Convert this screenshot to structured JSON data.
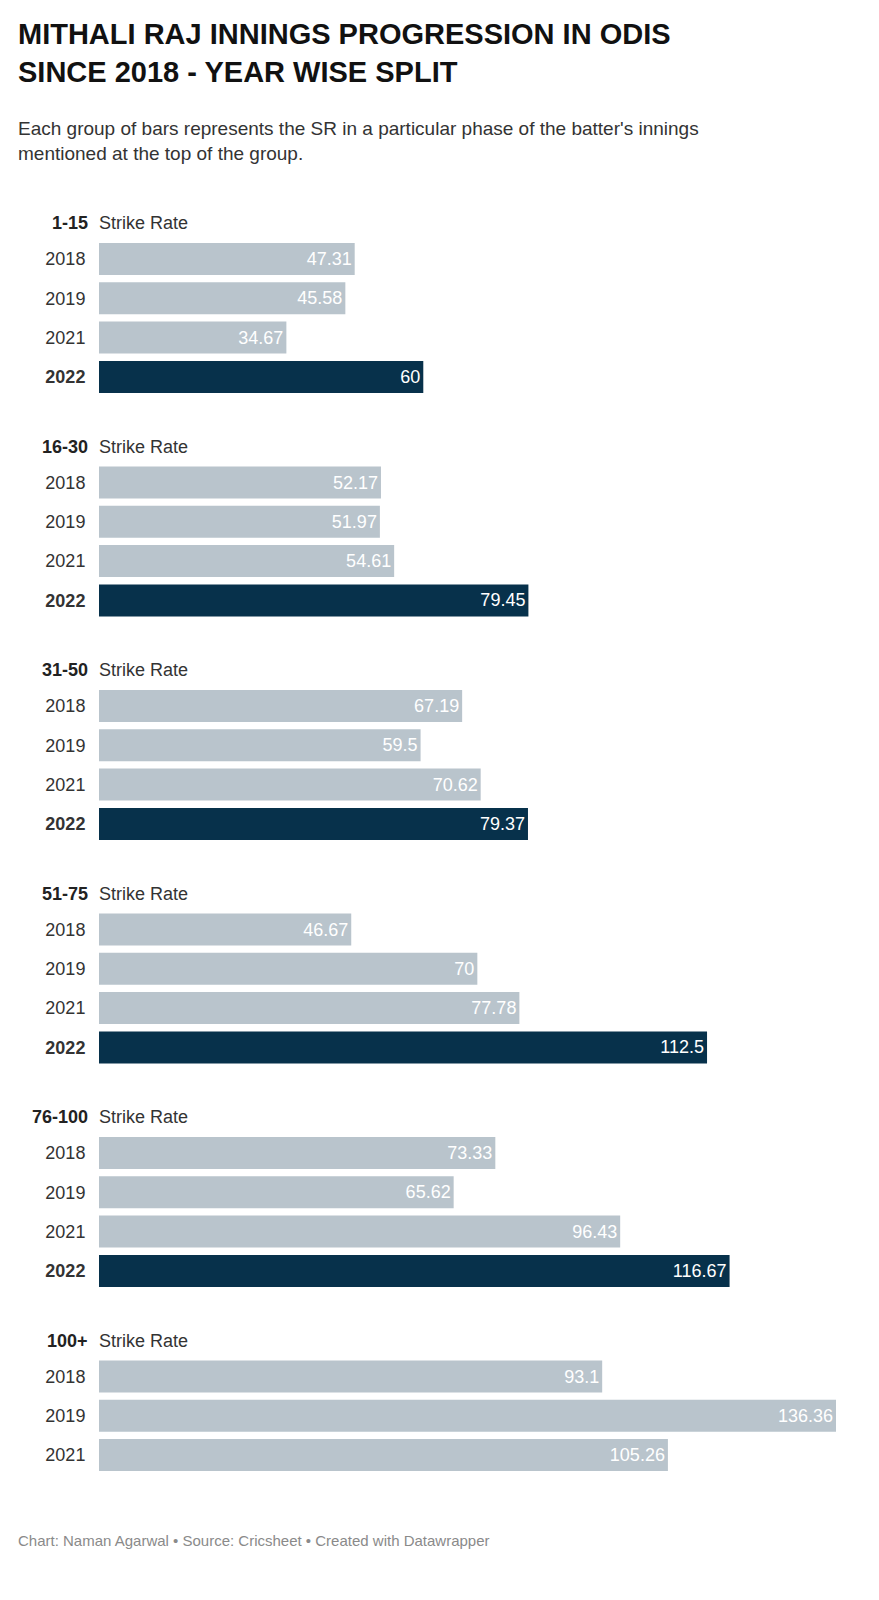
{
  "title": "MITHALI RAJ INNINGS PROGRESSION IN ODIS\nSINCE 2018 - YEAR WISE SPLIT",
  "subtitle": "Each group of bars represents the SR in a particular phase of the batter's innings\nmentioned at the top of the group.",
  "footer": "Chart: Naman Agarwal • Source: Cricsheet • Created with Datawrapper",
  "chart_data": [
    {
      "type": "bar",
      "orientation": "horizontal",
      "title": "1-15",
      "xlabel": "Strike Rate",
      "categories": [
        "2018",
        "2019",
        "2021",
        "2022"
      ],
      "values": [
        47.31,
        45.58,
        34.67,
        60
      ],
      "colors": [
        "#b9c4cc",
        "#b9c4cc",
        "#b9c4cc",
        "#07314b"
      ],
      "xlim": [
        0,
        136.36
      ],
      "xticks": [],
      "grid": false,
      "data_labels": true,
      "tick_labels": "y"
    },
    {
      "type": "bar",
      "orientation": "horizontal",
      "title": "16-30",
      "xlabel": "Strike Rate",
      "categories": [
        "2018",
        "2019",
        "2021",
        "2022"
      ],
      "values": [
        52.17,
        51.97,
        54.61,
        79.45
      ],
      "colors": [
        "#b9c4cc",
        "#b9c4cc",
        "#b9c4cc",
        "#07314b"
      ],
      "xlim": [
        0,
        136.36
      ],
      "xticks": [],
      "grid": false,
      "data_labels": true,
      "tick_labels": "y"
    },
    {
      "type": "bar",
      "orientation": "horizontal",
      "title": "31-50",
      "xlabel": "Strike Rate",
      "categories": [
        "2018",
        "2019",
        "2021",
        "2022"
      ],
      "values": [
        67.19,
        59.5,
        70.62,
        79.37
      ],
      "colors": [
        "#b9c4cc",
        "#b9c4cc",
        "#b9c4cc",
        "#07314b"
      ],
      "xlim": [
        0,
        136.36
      ],
      "xticks": [],
      "grid": false,
      "data_labels": true,
      "tick_labels": "y"
    },
    {
      "type": "bar",
      "orientation": "horizontal",
      "title": "51-75",
      "xlabel": "Strike Rate",
      "categories": [
        "2018",
        "2019",
        "2021",
        "2022"
      ],
      "values": [
        46.67,
        70,
        77.78,
        112.5
      ],
      "colors": [
        "#b9c4cc",
        "#b9c4cc",
        "#b9c4cc",
        "#07314b"
      ],
      "xlim": [
        0,
        136.36
      ],
      "xticks": [],
      "grid": false,
      "data_labels": true,
      "tick_labels": "y"
    },
    {
      "type": "bar",
      "orientation": "horizontal",
      "title": "76-100",
      "xlabel": "Strike Rate",
      "categories": [
        "2018",
        "2019",
        "2021",
        "2022"
      ],
      "values": [
        73.33,
        65.62,
        96.43,
        116.67
      ],
      "colors": [
        "#b9c4cc",
        "#b9c4cc",
        "#b9c4cc",
        "#07314b"
      ],
      "xlim": [
        0,
        136.36
      ],
      "xticks": [],
      "grid": false,
      "data_labels": true,
      "tick_labels": "y"
    },
    {
      "type": "bar",
      "orientation": "horizontal",
      "title": "100+",
      "xlabel": "Strike Rate",
      "categories": [
        "2018",
        "2019",
        "2021"
      ],
      "values": [
        93.1,
        136.36,
        105.26
      ],
      "colors": [
        "#b9c4cc",
        "#b9c4cc",
        "#b9c4cc"
      ],
      "xlim": [
        0,
        136.36
      ],
      "xticks": [],
      "grid": false,
      "data_labels": true,
      "tick_labels": "y"
    }
  ]
}
